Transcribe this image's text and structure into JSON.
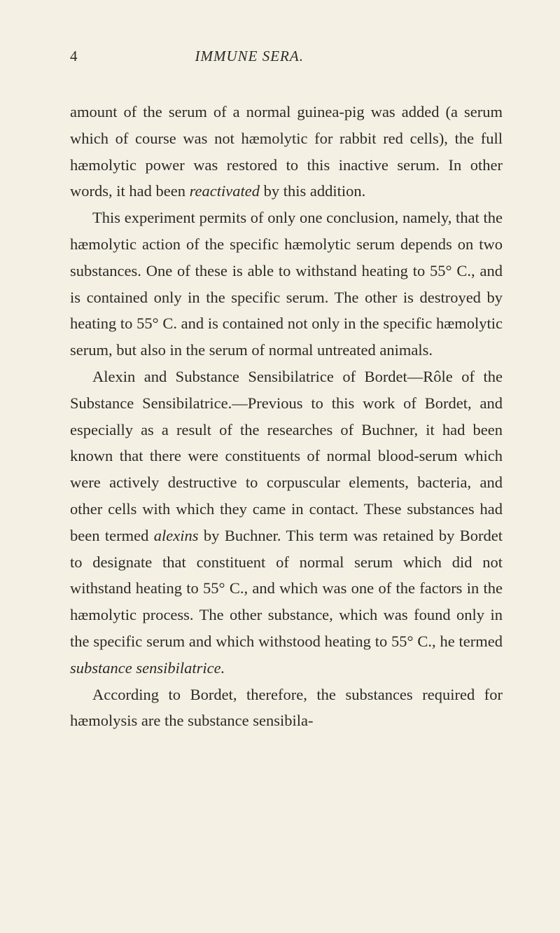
{
  "header": {
    "page_number": "4",
    "book_title": "IMMUNE SERA."
  },
  "body": {
    "p1_a": "amount of the serum of a normal guinea-pig was added (a serum which of course was not hæmolytic for rabbit red cells), the full hæmolytic power was restored to this inactive serum.  In other words, it had been ",
    "p1_italic": "reactivated",
    "p1_b": " by this addition.",
    "p2": "This experiment permits of only one conclusion, namely, that the hæmolytic action of the specific hæmolytic serum depends on two substances.  One of these is able to withstand heating to 55° C., and is contained only in the specific serum.  The other is destroyed by heating to 55° C. and is contained not only in the specific hæmolytic serum, but also in the serum of normal untreated animals.",
    "p3_title": "Alexin and Substance Sensibilatrice of Bordet—Rôle of the Substance Sensibilatrice.",
    "p3_a": "—Previous to this work of Bordet, and especially as a result of the researches of Buchner, it had been known that there were con­stituents of normal blood-serum which were ac­tively destructive to corpuscular elements, bac­teria, and other cells with which they came in con­tact.  These substances had been termed ",
    "p3_italic1": "alexins",
    "p3_b": " by Buchner.  This term was retained by Bordet to designate that constituent of normal serum which did not withstand heating to 55° C., and which was one of the factors in the hæmolytic process.  The other substance, which was found only in the specific serum and which withstood heating to 55° C., he termed ",
    "p3_italic2": "substance sensibilatrice.",
    "p4": "According to Bordet, therefore, the substances required for hæmolysis are the substance sensibila-"
  },
  "colors": {
    "background": "#f5f0e4",
    "text": "#2a2a26"
  },
  "typography": {
    "body_fontsize": 22.5,
    "header_fontsize": 21,
    "line_height": 1.68,
    "font_family": "Georgia, Times New Roman, serif"
  }
}
